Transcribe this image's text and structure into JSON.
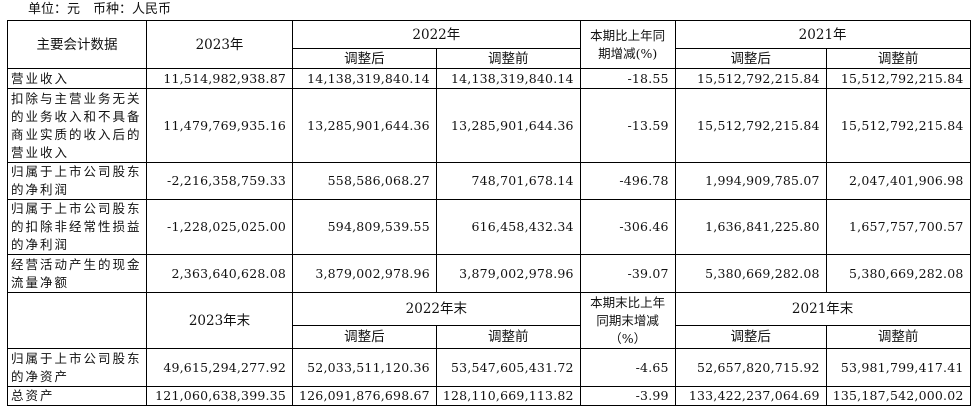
{
  "unit_line": "单位：元　币种：人民币",
  "header1": {
    "label": "主要会计数据",
    "y2023": "2023年",
    "y2022": "2022年",
    "change": "本期比上年同期增减(%)",
    "y2021": "2021年",
    "adjusted_after": "调整后",
    "adjusted_before": "调整前"
  },
  "rows1": [
    {
      "label": "营业收入",
      "v2023": "11,514,982,938.87",
      "v2022a": "14,138,319,840.14",
      "v2022b": "14,138,319,840.14",
      "chg": "-18.55",
      "v2021a": "15,512,792,215.84",
      "v2021b": "15,512,792,215.84"
    },
    {
      "label": "扣除与主营业务无关的业务收入和不具备商业实质的收入后的营业收入",
      "v2023": "11,479,769,935.16",
      "v2022a": "13,285,901,644.36",
      "v2022b": "13,285,901,644.36",
      "chg": "-13.59",
      "v2021a": "15,512,792,215.84",
      "v2021b": "15,512,792,215.84"
    },
    {
      "label": "归属于上市公司股东的净利润",
      "v2023": "-2,216,358,759.33",
      "v2022a": "558,586,068.27",
      "v2022b": "748,701,678.14",
      "chg": "-496.78",
      "v2021a": "1,994,909,785.07",
      "v2021b": "2,047,401,906.98"
    },
    {
      "label": "归属于上市公司股东的扣除非经常性损益的净利润",
      "v2023": "-1,228,025,025.00",
      "v2022a": "594,809,539.55",
      "v2022b": "616,458,432.34",
      "chg": "-306.46",
      "v2021a": "1,636,841,225.80",
      "v2021b": "1,657,757,700.57"
    },
    {
      "label": "经营活动产生的现金流量净额",
      "v2023": "2,363,640,628.08",
      "v2022a": "3,879,002,978.96",
      "v2022b": "3,879,002,978.96",
      "chg": "-39.07",
      "v2021a": "5,380,669,282.08",
      "v2021b": "5,380,669,282.08"
    }
  ],
  "header2": {
    "label": "",
    "y2023": "2023年末",
    "y2022": "2022年末",
    "change": "本期末比上年同期末增减（%）",
    "y2021": "2021年末",
    "adjusted_after": "调整后",
    "adjusted_before": "调整前"
  },
  "rows2": [
    {
      "label": "归属于上市公司股东的净资产",
      "v2023": "49,615,294,277.92",
      "v2022a": "52,033,511,120.36",
      "v2022b": "53,547,605,431.72",
      "chg": "-4.65",
      "v2021a": "52,657,820,715.92",
      "v2021b": "53,981,799,417.41"
    },
    {
      "label": "总资产",
      "v2023": "121,060,638,399.35",
      "v2022a": "126,091,876,698.67",
      "v2022b": "128,110,669,113.82",
      "chg": "-3.99",
      "v2021a": "133,422,237,064.69",
      "v2021b": "135,187,542,000.02"
    }
  ]
}
